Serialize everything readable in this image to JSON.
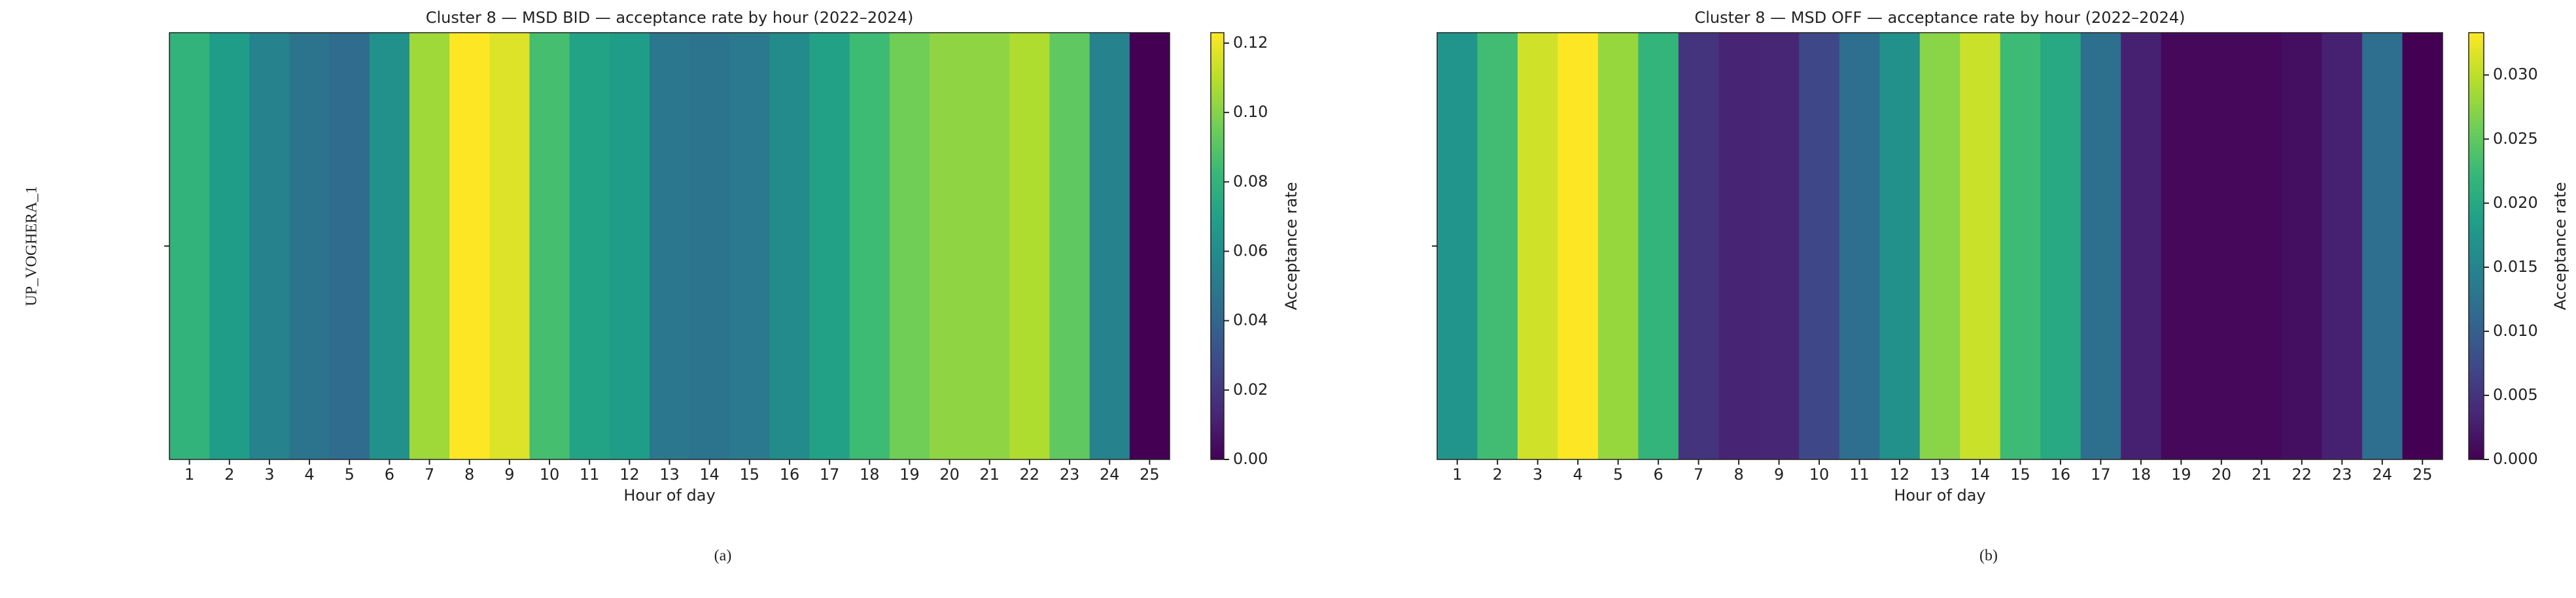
{
  "chart_data": [
    {
      "type": "heatmap",
      "title": "Cluster 8 — MSD BID — acceptance rate by hour (2022–2024)",
      "x_label": "Hour of day",
      "y_categories": [
        "UP_VOGHERA_1"
      ],
      "panel_label": "(a)",
      "categories": [
        "1",
        "2",
        "3",
        "4",
        "5",
        "6",
        "7",
        "8",
        "9",
        "10",
        "11",
        "12",
        "13",
        "14",
        "15",
        "16",
        "17",
        "18",
        "19",
        "20",
        "21",
        "22",
        "23",
        "24",
        "25"
      ],
      "values": [
        0.08,
        0.068,
        0.055,
        0.047,
        0.043,
        0.062,
        0.105,
        0.123,
        0.117,
        0.086,
        0.071,
        0.068,
        0.049,
        0.047,
        0.05,
        0.059,
        0.07,
        0.084,
        0.096,
        0.102,
        0.102,
        0.108,
        0.092,
        0.055,
        0
      ],
      "colormap": "viridis",
      "clim": [
        0,
        0.123
      ],
      "colorbar_label": "Acceptance rate",
      "cticks": [
        {
          "value": 0,
          "label": "0.00"
        },
        {
          "value": 0.02,
          "label": "0.02"
        },
        {
          "value": 0.04,
          "label": "0.04"
        },
        {
          "value": 0.06,
          "label": "0.06"
        },
        {
          "value": 0.08,
          "label": "0.08"
        },
        {
          "value": 0.1,
          "label": "0.10"
        },
        {
          "value": 0.12,
          "label": "0.12"
        }
      ]
    },
    {
      "type": "heatmap",
      "title": "Cluster 8 — MSD OFF — acceptance rate by hour (2022–2024)",
      "x_label": "Hour of day",
      "y_categories": [
        null
      ],
      "panel_label": "(b)",
      "categories": [
        "1",
        "2",
        "3",
        "4",
        "5",
        "6",
        "7",
        "8",
        "9",
        "10",
        "11",
        "12",
        "13",
        "14",
        "15",
        "16",
        "17",
        "18",
        "19",
        "20",
        "21",
        "22",
        "23",
        "24",
        "25"
      ],
      "values": [
        0.0173,
        0.023,
        0.031,
        0.0333,
        0.028,
        0.0217,
        0.005,
        0.0033,
        0.0035,
        0.0073,
        0.012,
        0.0167,
        0.0273,
        0.0307,
        0.0227,
        0.02,
        0.0123,
        0.003,
        0.0007,
        0.0007,
        0.0007,
        0.0013,
        0.003,
        0.012,
        0
      ],
      "colormap": "viridis",
      "clim": [
        0,
        0.0333
      ],
      "colorbar_label": "Acceptance rate",
      "cticks": [
        {
          "value": 0,
          "label": "0.000"
        },
        {
          "value": 0.005,
          "label": "0.005"
        },
        {
          "value": 0.01,
          "label": "0.010"
        },
        {
          "value": 0.015,
          "label": "0.015"
        },
        {
          "value": 0.02,
          "label": "0.020"
        },
        {
          "value": 0.025,
          "label": "0.025"
        },
        {
          "value": 0.03,
          "label": "0.030"
        }
      ]
    }
  ]
}
